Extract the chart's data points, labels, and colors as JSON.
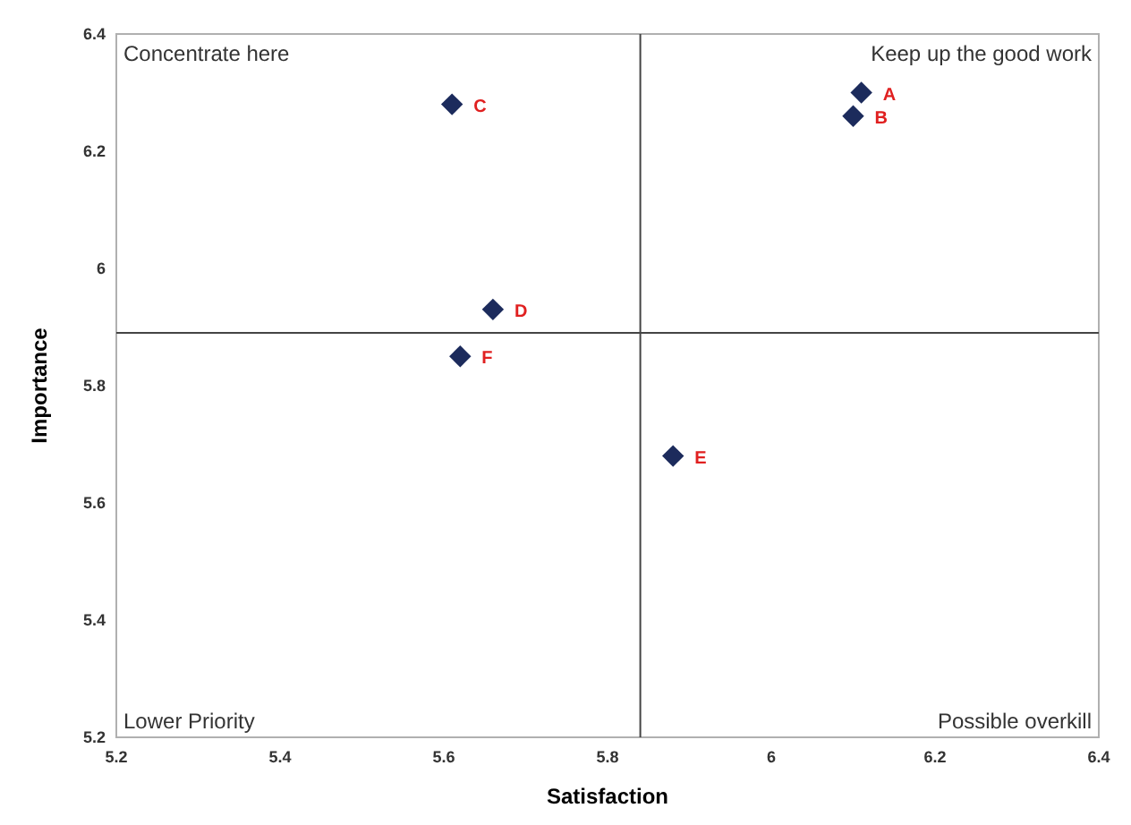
{
  "chart_data": {
    "type": "scatter",
    "xlabel": "Satisfaction",
    "ylabel": "Importance",
    "series": [
      {
        "color": "#1c2b5c",
        "x": [
          6.11,
          6.1,
          5.61,
          5.66,
          5.88,
          5.62
        ],
        "values": [
          6.3,
          6.26,
          6.28,
          5.93,
          5.68,
          5.85
        ]
      }
    ],
    "marker": "diamond",
    "grid": false,
    "xlim": [
      5.2,
      6.4
    ],
    "xticks": [
      5.2,
      5.4,
      5.6,
      5.8,
      6,
      6.2,
      6.4
    ],
    "ylim": [
      5.2,
      6.4
    ],
    "yticks": [
      5.2,
      5.4,
      5.6,
      5.8,
      6,
      6.2,
      6.4
    ],
    "ref_lines": [
      {
        "axis": "x",
        "value": 5.84
      },
      {
        "axis": "y",
        "value": 5.89
      }
    ],
    "annotations": [
      "Concentrate here",
      "Keep up the good work",
      "Lower Priority",
      "Possible overkill",
      {
        "text": "A",
        "x": 6.11,
        "y": 6.3
      },
      {
        "text": "B",
        "x": 6.1,
        "y": 6.26
      },
      {
        "text": "C",
        "x": 5.61,
        "y": 6.28
      },
      {
        "text": "D",
        "x": 5.66,
        "y": 5.93
      },
      {
        "text": "E",
        "x": 5.88,
        "y": 5.68
      },
      {
        "text": "F",
        "x": 5.62,
        "y": 5.85
      }
    ]
  }
}
